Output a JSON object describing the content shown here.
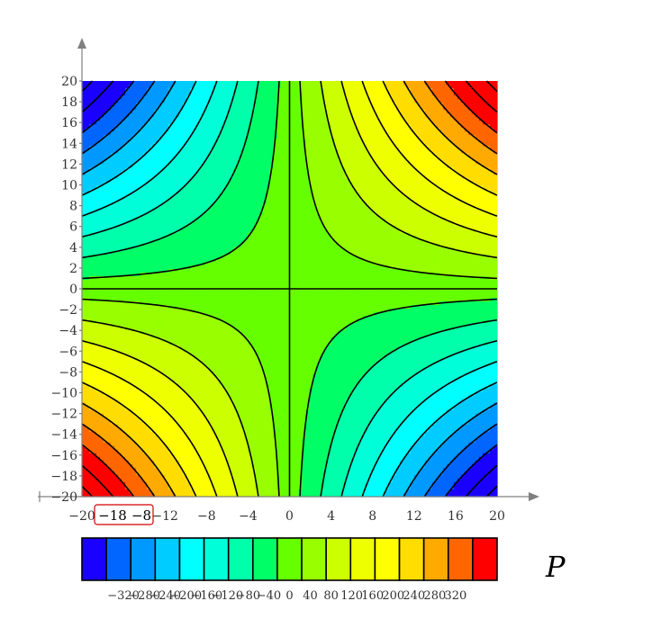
{
  "chart_data": {
    "type": "contour",
    "function": "P = x * y",
    "x": {
      "min": -20,
      "max": 20,
      "ticks": [
        -20,
        -12,
        -8,
        -4,
        0,
        4,
        8,
        12,
        16,
        20
      ]
    },
    "y": {
      "min": -20,
      "max": 20,
      "ticks": [
        -20,
        -18,
        -16,
        -14,
        -12,
        -10,
        -8,
        -6,
        -4,
        -2,
        0,
        2,
        4,
        6,
        8,
        10,
        12,
        14,
        16,
        18,
        20
      ]
    },
    "levels": [
      -320,
      -280,
      -240,
      -200,
      -160,
      -120,
      -80,
      -40,
      0,
      40,
      80,
      120,
      160,
      200,
      240,
      280,
      320
    ],
    "colorbar": {
      "name": "P",
      "range": [
        -400,
        400
      ],
      "band_colors": [
        "#1a00ff",
        "#0066ff",
        "#0099ff",
        "#00ccff",
        "#00ffff",
        "#00ffd9",
        "#00ffaa",
        "#00ff66",
        "#66ff00",
        "#99ff00",
        "#ccff00",
        "#eeff00",
        "#ffff00",
        "#ffdd00",
        "#ffaa00",
        "#ff6600",
        "#ff0000"
      ],
      "tick_labels": [
        "−320",
        "−280",
        "−240",
        "−200",
        "−160",
        "−120",
        "−80",
        "−40",
        "0",
        "40",
        "80",
        "120",
        "160",
        "200",
        "240",
        "280",
        "320"
      ]
    },
    "highlight": {
      "labels": [
        "−18",
        "−8"
      ]
    },
    "grid": false
  }
}
